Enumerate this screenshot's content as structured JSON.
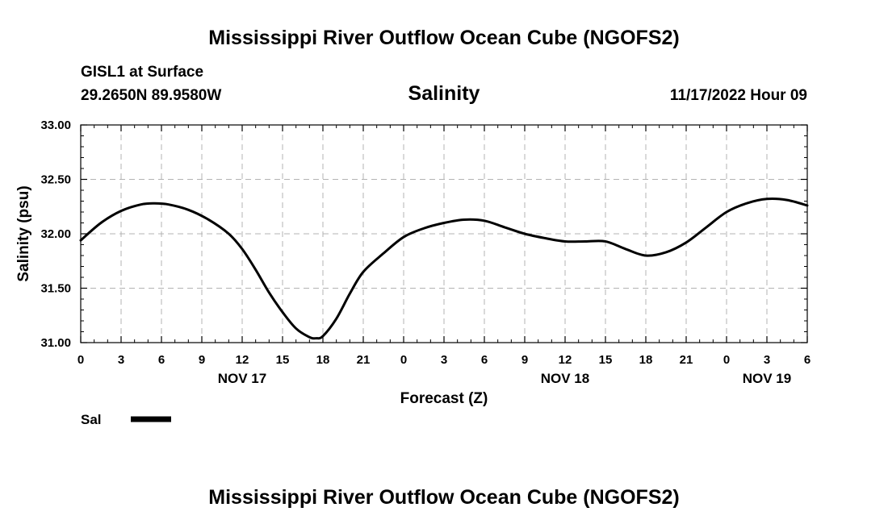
{
  "header": {
    "title": "Mississippi River Outflow Ocean Cube (NGOFS2)",
    "station": "GISL1 at Surface",
    "coords": "29.2650N  89.9580W",
    "datetime": "11/17/2022 Hour 09",
    "footer_title": "Mississippi River Outflow Ocean Cube (NGOFS2)"
  },
  "chart_data": {
    "type": "line",
    "title": "Salinity",
    "xlabel": "Forecast (Z)",
    "ylabel": "Salinity (psu)",
    "xlim": [
      0,
      54
    ],
    "ylim": [
      31.0,
      33.0
    ],
    "grid": true,
    "y_ticks": [
      "31.00",
      "31.50",
      "32.00",
      "32.50",
      "33.00"
    ],
    "y_tick_values": [
      31.0,
      31.5,
      32.0,
      32.5,
      33.0
    ],
    "x_tick_labels": [
      "0",
      "3",
      "6",
      "9",
      "12",
      "15",
      "18",
      "21",
      "0",
      "3",
      "6",
      "9",
      "12",
      "15",
      "18",
      "21",
      "0",
      "3",
      "6"
    ],
    "date_labels": [
      {
        "label": "NOV 17",
        "hour": 12
      },
      {
        "label": "NOV 18",
        "hour": 36
      },
      {
        "label": "NOV 19",
        "hour": 51
      }
    ],
    "series": [
      {
        "name": "Sal",
        "color": "#000000",
        "x": [
          0,
          1.5,
          3,
          4.5,
          5.5,
          6.5,
          8,
          9.5,
          11,
          12,
          13,
          14,
          15,
          16,
          17,
          17.5,
          18,
          19,
          20,
          21,
          22.5,
          24,
          25.5,
          27,
          28.5,
          30,
          31.5,
          33,
          34.5,
          36,
          37.5,
          39,
          40.5,
          42,
          43.5,
          45,
          46.5,
          48,
          49.5,
          51,
          52.5,
          54
        ],
        "values": [
          31.94,
          32.1,
          32.21,
          32.27,
          32.28,
          32.27,
          32.22,
          32.13,
          32.0,
          31.86,
          31.67,
          31.46,
          31.28,
          31.13,
          31.05,
          31.04,
          31.06,
          31.22,
          31.45,
          31.65,
          31.82,
          31.97,
          32.05,
          32.1,
          32.13,
          32.12,
          32.06,
          32.0,
          31.96,
          31.93,
          31.93,
          31.93,
          31.86,
          31.8,
          31.83,
          31.92,
          32.06,
          32.2,
          32.28,
          32.32,
          32.31,
          32.26
        ]
      }
    ],
    "legend": {
      "position": "bottom-left",
      "label": "Sal"
    }
  }
}
